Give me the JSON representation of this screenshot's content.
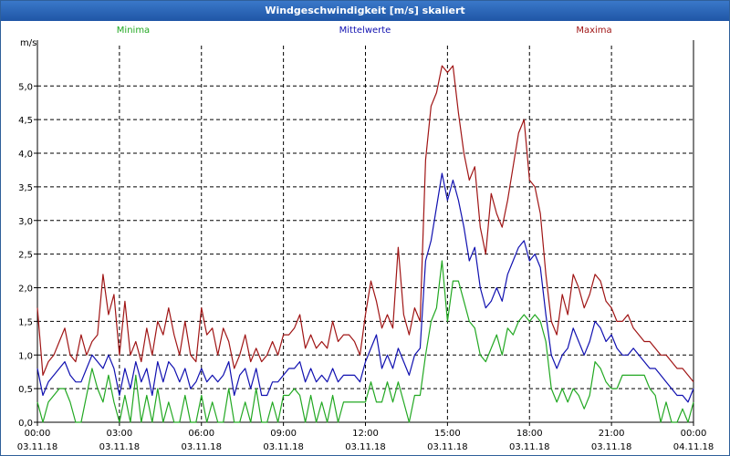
{
  "window": {
    "title": "Windgeschwindigkeit [m/s] skaliert"
  },
  "colors": {
    "minima": "#22a822",
    "mittel": "#1010b0",
    "maxima": "#a01515",
    "grid": "#000000",
    "title_bar": "#2a67b8"
  },
  "chart_data": {
    "type": "line",
    "title": "Windgeschwindigkeit [m/s] skaliert",
    "ylabel": "m/s",
    "xlabel": "",
    "ylim": [
      0,
      5.6
    ],
    "xlim": [
      0,
      24
    ],
    "grid": true,
    "legend": [
      "Minima",
      "Mittelwerte",
      "Maxima"
    ],
    "y_ticks": [
      "0,0",
      "0,5",
      "1,0",
      "1,5",
      "2,0",
      "2,5",
      "3,0",
      "3,5",
      "4,0",
      "4,5",
      "5,0"
    ],
    "x_tick_times": [
      "00:00",
      "03:00",
      "06:00",
      "09:00",
      "12:00",
      "15:00",
      "18:00",
      "21:00",
      "00:00"
    ],
    "x_tick_dates": [
      "03.11.18",
      "03.11.18",
      "03.11.18",
      "03.11.18",
      "03.11.18",
      "03.11.18",
      "03.11.18",
      "03.11.18",
      "04.11.18"
    ],
    "x_hours": [
      0.0,
      0.2,
      0.4,
      0.6,
      0.8,
      1.0,
      1.2,
      1.4,
      1.6,
      1.8,
      2.0,
      2.2,
      2.4,
      2.6,
      2.8,
      3.0,
      3.2,
      3.4,
      3.6,
      3.8,
      4.0,
      4.2,
      4.4,
      4.6,
      4.8,
      5.0,
      5.2,
      5.4,
      5.6,
      5.8,
      6.0,
      6.2,
      6.4,
      6.6,
      6.8,
      7.0,
      7.2,
      7.4,
      7.6,
      7.8,
      8.0,
      8.2,
      8.4,
      8.6,
      8.8,
      9.0,
      9.2,
      9.4,
      9.6,
      9.8,
      10.0,
      10.2,
      10.4,
      10.6,
      10.8,
      11.0,
      11.2,
      11.4,
      11.6,
      11.8,
      12.0,
      12.2,
      12.4,
      12.6,
      12.8,
      13.0,
      13.2,
      13.4,
      13.6,
      13.8,
      14.0,
      14.2,
      14.4,
      14.6,
      14.8,
      15.0,
      15.2,
      15.4,
      15.6,
      15.8,
      16.0,
      16.2,
      16.4,
      16.6,
      16.8,
      17.0,
      17.2,
      17.4,
      17.6,
      17.8,
      18.0,
      18.2,
      18.4,
      18.6,
      18.8,
      19.0,
      19.2,
      19.4,
      19.6,
      19.8,
      20.0,
      20.2,
      20.4,
      20.6,
      20.8,
      21.0,
      21.2,
      21.4,
      21.6,
      21.8,
      22.0,
      22.2,
      22.4,
      22.6,
      22.8,
      23.0,
      23.2,
      23.4,
      23.6,
      23.8,
      24.0
    ],
    "series": [
      {
        "name": "Minima",
        "color": "#22a822",
        "values": [
          0.3,
          0.0,
          0.3,
          0.4,
          0.5,
          0.5,
          0.3,
          0.0,
          0.0,
          0.4,
          0.8,
          0.5,
          0.3,
          0.7,
          0.3,
          0.0,
          0.4,
          0.0,
          0.7,
          0.0,
          0.4,
          0.0,
          0.5,
          0.0,
          0.3,
          0.0,
          0.0,
          0.4,
          0.0,
          0.0,
          0.4,
          0.0,
          0.3,
          0.0,
          0.0,
          0.5,
          0.0,
          0.0,
          0.3,
          0.0,
          0.5,
          0.0,
          0.0,
          0.3,
          0.0,
          0.4,
          0.4,
          0.5,
          0.4,
          0.0,
          0.4,
          0.0,
          0.3,
          0.0,
          0.4,
          0.0,
          0.3,
          0.3,
          0.3,
          0.3,
          0.3,
          0.6,
          0.3,
          0.3,
          0.6,
          0.3,
          0.6,
          0.3,
          0.0,
          0.4,
          0.4,
          1.0,
          1.5,
          1.7,
          2.4,
          1.5,
          2.1,
          2.1,
          1.8,
          1.5,
          1.4,
          1.0,
          0.9,
          1.1,
          1.3,
          1.0,
          1.4,
          1.3,
          1.5,
          1.6,
          1.5,
          1.6,
          1.5,
          1.2,
          0.5,
          0.3,
          0.5,
          0.3,
          0.5,
          0.4,
          0.2,
          0.4,
          0.9,
          0.8,
          0.6,
          0.5,
          0.5,
          0.7,
          0.7,
          0.7,
          0.7,
          0.7,
          0.5,
          0.4,
          0.0,
          0.3,
          0.0,
          0.0,
          0.2,
          0.0,
          0.3
        ]
      },
      {
        "name": "Mittelwerte",
        "color": "#1010b0",
        "values": [
          0.8,
          0.4,
          0.6,
          0.7,
          0.8,
          0.9,
          0.7,
          0.6,
          0.6,
          0.8,
          1.0,
          0.9,
          0.8,
          1.0,
          0.8,
          0.4,
          0.8,
          0.5,
          0.9,
          0.6,
          0.8,
          0.4,
          0.9,
          0.6,
          0.9,
          0.8,
          0.6,
          0.8,
          0.5,
          0.6,
          0.8,
          0.6,
          0.7,
          0.6,
          0.7,
          0.9,
          0.4,
          0.7,
          0.8,
          0.5,
          0.8,
          0.4,
          0.4,
          0.6,
          0.6,
          0.7,
          0.8,
          0.8,
          0.9,
          0.6,
          0.8,
          0.6,
          0.7,
          0.6,
          0.8,
          0.6,
          0.7,
          0.7,
          0.7,
          0.6,
          0.9,
          1.1,
          1.3,
          0.8,
          1.0,
          0.8,
          1.1,
          0.9,
          0.7,
          1.0,
          1.1,
          2.4,
          2.7,
          3.2,
          3.7,
          3.3,
          3.6,
          3.3,
          2.9,
          2.4,
          2.6,
          2.0,
          1.7,
          1.8,
          2.0,
          1.8,
          2.2,
          2.4,
          2.6,
          2.7,
          2.4,
          2.5,
          2.3,
          1.6,
          1.0,
          0.8,
          1.0,
          1.1,
          1.4,
          1.2,
          1.0,
          1.2,
          1.5,
          1.4,
          1.2,
          1.3,
          1.1,
          1.0,
          1.0,
          1.1,
          1.0,
          0.9,
          0.8,
          0.8,
          0.7,
          0.6,
          0.5,
          0.4,
          0.4,
          0.3,
          0.5
        ]
      },
      {
        "name": "Maxima",
        "color": "#a01515",
        "values": [
          1.7,
          0.7,
          0.9,
          1.0,
          1.2,
          1.4,
          1.0,
          0.9,
          1.3,
          1.0,
          1.2,
          1.3,
          2.2,
          1.6,
          1.9,
          1.0,
          1.8,
          1.0,
          1.2,
          0.9,
          1.4,
          1.0,
          1.5,
          1.3,
          1.7,
          1.3,
          1.0,
          1.5,
          1.0,
          0.9,
          1.7,
          1.3,
          1.4,
          1.0,
          1.4,
          1.2,
          0.8,
          1.0,
          1.3,
          0.9,
          1.1,
          0.9,
          1.0,
          1.2,
          1.0,
          1.3,
          1.3,
          1.4,
          1.6,
          1.1,
          1.3,
          1.1,
          1.2,
          1.1,
          1.5,
          1.2,
          1.3,
          1.3,
          1.2,
          1.0,
          1.6,
          2.1,
          1.8,
          1.4,
          1.6,
          1.4,
          2.6,
          1.6,
          1.3,
          1.7,
          1.5,
          3.9,
          4.7,
          4.9,
          5.3,
          5.2,
          5.3,
          4.6,
          4.0,
          3.6,
          3.8,
          2.9,
          2.5,
          3.4,
          3.1,
          2.9,
          3.3,
          3.8,
          4.3,
          4.5,
          3.6,
          3.5,
          3.1,
          2.2,
          1.5,
          1.3,
          1.9,
          1.6,
          2.2,
          2.0,
          1.7,
          1.9,
          2.2,
          2.1,
          1.8,
          1.7,
          1.5,
          1.5,
          1.6,
          1.4,
          1.3,
          1.2,
          1.2,
          1.1,
          1.0,
          1.0,
          0.9,
          0.8,
          0.8,
          0.7,
          0.6
        ]
      }
    ]
  }
}
